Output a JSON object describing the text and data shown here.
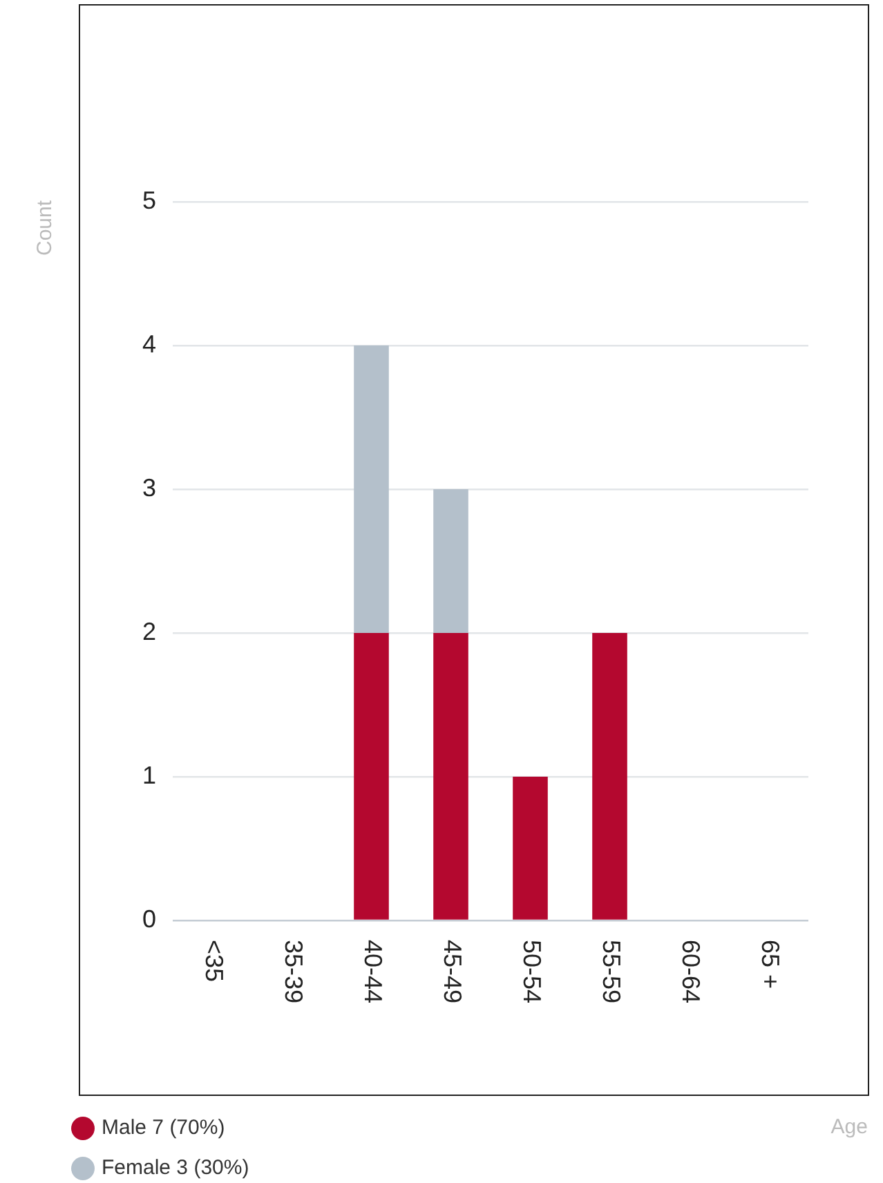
{
  "chart_data": {
    "type": "bar",
    "annotations": [
      "Age"
    ],
    "ylabel": "Count",
    "categories": [
      "<35",
      "35-39",
      "40-44",
      "45-49",
      "50-54",
      "55-59",
      "60-64",
      "65 +"
    ],
    "series": [
      {
        "name": "Male 7 (70%)",
        "color": "#b4082f",
        "values": [
          0,
          0,
          2,
          2,
          1,
          2,
          0,
          0
        ]
      },
      {
        "name": "Female 3 (30%)",
        "color": "#b4c0cb",
        "values": [
          0,
          0,
          2,
          1,
          0,
          0,
          0,
          0
        ]
      }
    ],
    "stacked": true,
    "ylim": [
      0,
      5
    ],
    "yticks": [
      0,
      1,
      2,
      3,
      4,
      5
    ],
    "grid": "y",
    "legend": "bottom left"
  }
}
